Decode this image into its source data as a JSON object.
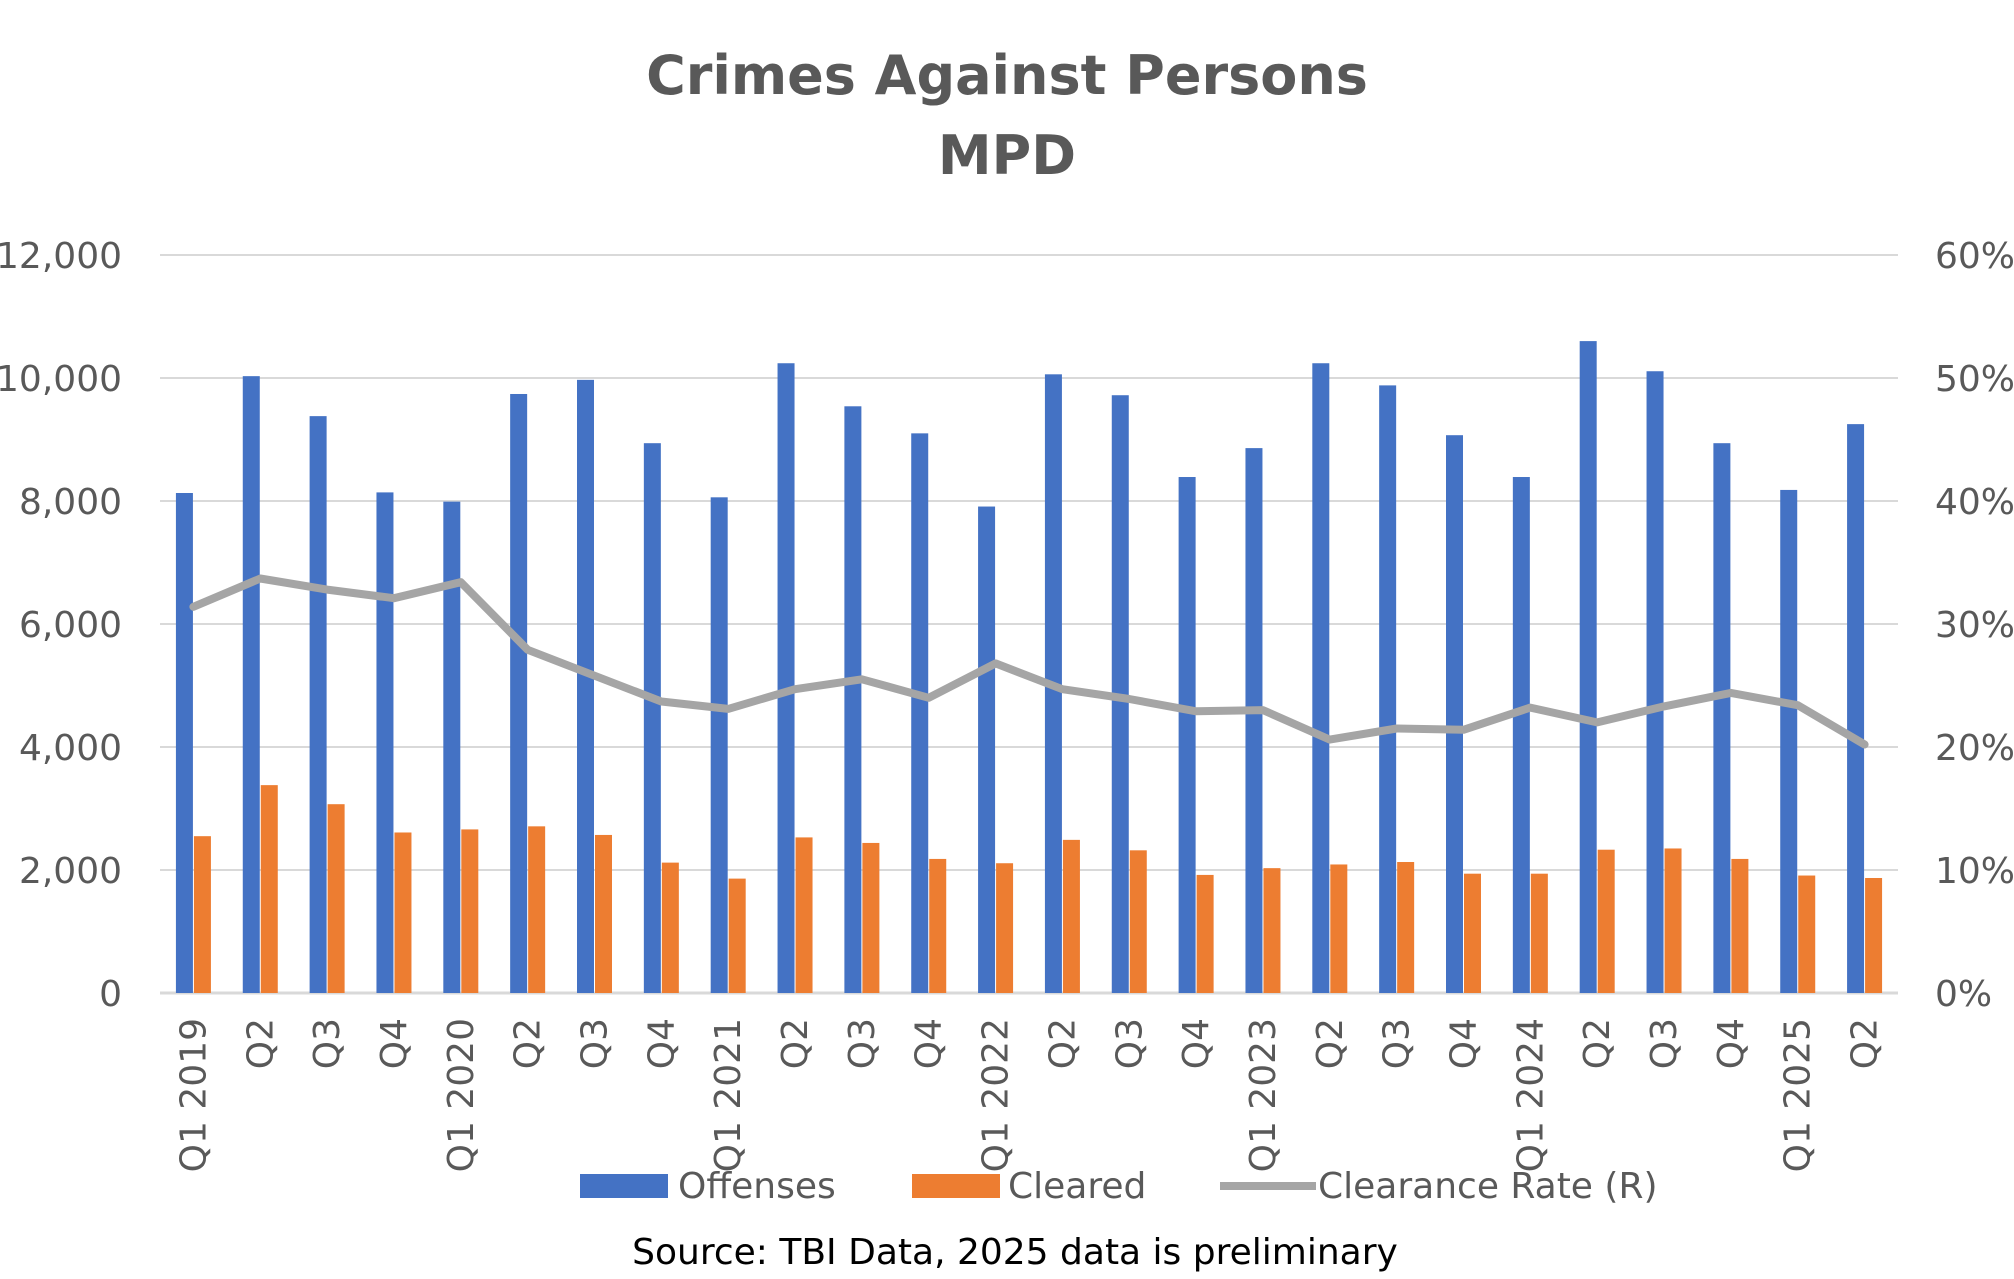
{
  "colors": {
    "offenses": "#4472C4",
    "cleared": "#ED7D31",
    "rate": "#A5A5A5",
    "grid": "#D9D9D9",
    "text": "#595959"
  },
  "chart_data": {
    "type": "bar",
    "title": "Crimes Against Persons",
    "subtitle": "MPD",
    "categories": [
      "Q1 2019",
      "Q2",
      "Q3",
      "Q4",
      "Q1 2020",
      "Q2",
      "Q3",
      "Q4",
      "Q1 2021",
      "Q2",
      "Q3",
      "Q4",
      "Q1 2022",
      "Q2",
      "Q3",
      "Q4",
      "Q1 2023",
      "Q2",
      "Q3",
      "Q4",
      "Q1 2024",
      "Q2",
      "Q3",
      "Q4",
      "Q1 2025",
      "Q2"
    ],
    "ylim": [
      0,
      12000
    ],
    "y2lim": [
      0,
      0.6
    ],
    "yticks": [
      "0",
      "2,000",
      "4,000",
      "6,000",
      "8,000",
      "10,000",
      "12,000"
    ],
    "y2ticks": [
      "0%",
      "10%",
      "20%",
      "30%",
      "40%",
      "50%",
      "60%"
    ],
    "grid": true,
    "legend_position": "bottom",
    "series": [
      {
        "name": "Offenses",
        "type": "bar",
        "axis": "left",
        "values": [
          8130,
          10030,
          9380,
          8140,
          7990,
          9740,
          9970,
          8940,
          8060,
          10240,
          9540,
          9100,
          7910,
          10060,
          9720,
          8390,
          8860,
          10240,
          9880,
          9070,
          8390,
          10600,
          10110,
          8940,
          8180,
          9250
        ]
      },
      {
        "name": "Cleared",
        "type": "bar",
        "axis": "left",
        "values": [
          2550,
          3380,
          3070,
          2610,
          2660,
          2710,
          2570,
          2120,
          1860,
          2530,
          2440,
          2180,
          2110,
          2490,
          2320,
          1920,
          2030,
          2090,
          2130,
          1940,
          1940,
          2330,
          2350,
          2180,
          1910,
          1870
        ]
      },
      {
        "name": "Clearance Rate (R)",
        "type": "line",
        "axis": "right",
        "values": [
          0.314,
          0.337,
          0.328,
          0.321,
          0.334,
          0.279,
          0.258,
          0.237,
          0.231,
          0.247,
          0.255,
          0.24,
          0.268,
          0.247,
          0.239,
          0.229,
          0.23,
          0.206,
          0.215,
          0.214,
          0.232,
          0.22,
          0.233,
          0.244,
          0.234,
          0.202
        ]
      }
    ],
    "source": "Source: TBI Data, 2025 data is preliminary"
  }
}
